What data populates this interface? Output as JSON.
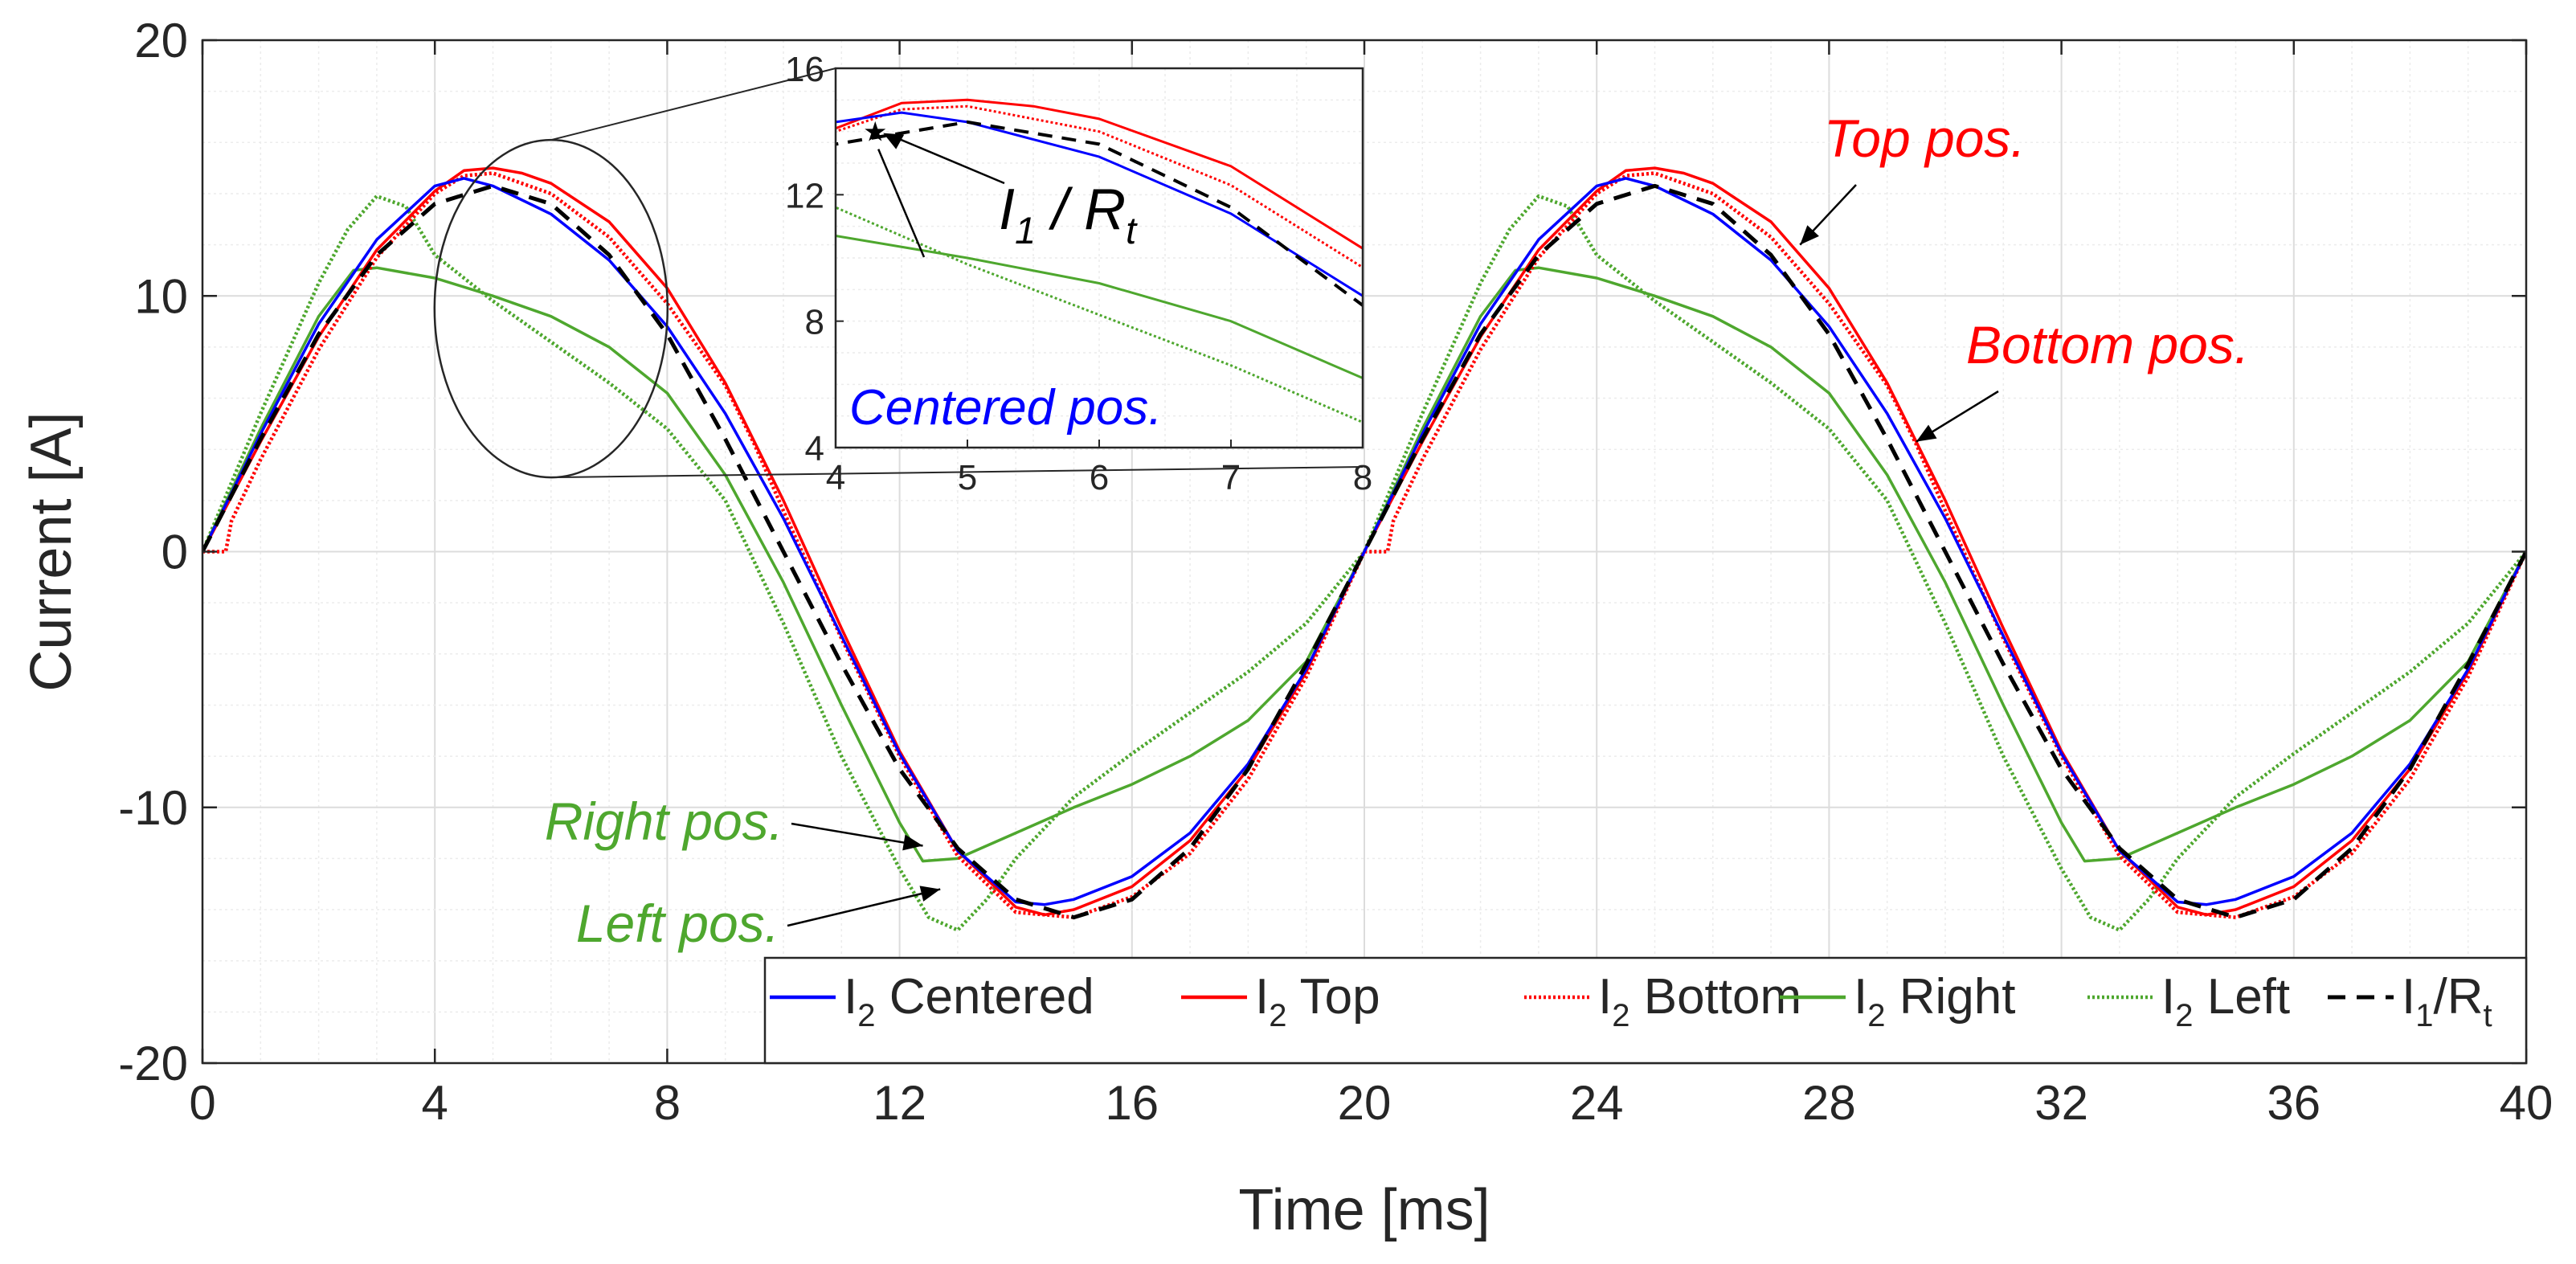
{
  "chart_data": {
    "type": "line",
    "xlabel": "Time [ms]",
    "ylabel": "Current [A]",
    "xlim": [
      0,
      40
    ],
    "ylim": [
      -20,
      20
    ],
    "xticks": [
      0,
      4,
      8,
      12,
      16,
      20,
      24,
      28,
      32,
      36,
      40
    ],
    "yticks": [
      -20,
      -10,
      0,
      10,
      20
    ],
    "grid": true,
    "legend_position": "bottom-right",
    "series": [
      {
        "key": "centered",
        "name": "I2 Centered",
        "sub": "2",
        "legend": [
          "I",
          "2",
          " Centered"
        ],
        "color": "#0000ff",
        "style": "solid",
        "x": [
          0,
          1,
          2,
          3,
          4,
          4.5,
          5,
          6,
          7,
          8,
          9,
          10,
          11,
          12,
          13,
          14,
          14.5,
          15,
          16,
          17,
          18,
          19,
          20,
          21,
          22,
          23,
          24,
          24.5,
          25,
          26,
          27,
          28,
          29,
          30,
          31,
          32,
          33,
          34,
          34.5,
          35,
          36,
          37,
          38,
          39,
          40
        ],
        "y": [
          0,
          4.6,
          8.9,
          12.2,
          14.3,
          14.6,
          14.3,
          13.2,
          11.4,
          8.8,
          5.4,
          1.3,
          -3.3,
          -7.9,
          -11.7,
          -13.7,
          -13.8,
          -13.6,
          -12.7,
          -11.0,
          -8.3,
          -4.6,
          0,
          4.6,
          8.9,
          12.2,
          14.3,
          14.6,
          14.3,
          13.2,
          11.4,
          8.8,
          5.4,
          1.3,
          -3.3,
          -7.9,
          -11.7,
          -13.7,
          -13.8,
          -13.6,
          -12.7,
          -11.0,
          -8.3,
          -4.6,
          0
        ]
      },
      {
        "key": "top",
        "name": "I2 Top",
        "sub": "2",
        "legend": [
          "I",
          "2",
          " Top"
        ],
        "color": "#ff0000",
        "style": "solid",
        "x": [
          0,
          1,
          2,
          3,
          4,
          4.5,
          5,
          5.5,
          6,
          7,
          8,
          9,
          10,
          11,
          12,
          13,
          14,
          14.5,
          15,
          16,
          17,
          18,
          19,
          20,
          21,
          22,
          23,
          24,
          24.5,
          25,
          25.5,
          26,
          27,
          28,
          29,
          30,
          31,
          32,
          33,
          34,
          34.5,
          35,
          36,
          37,
          38,
          39,
          40
        ],
        "y": [
          0,
          4.3,
          8.4,
          11.8,
          14.1,
          14.9,
          15.0,
          14.8,
          14.4,
          12.9,
          10.3,
          6.6,
          2.0,
          -3.0,
          -7.8,
          -11.7,
          -13.9,
          -14.2,
          -14.0,
          -13.1,
          -11.3,
          -8.5,
          -4.7,
          0,
          4.3,
          8.4,
          11.8,
          14.1,
          14.9,
          15.0,
          14.8,
          14.4,
          12.9,
          10.3,
          6.6,
          2.0,
          -3.0,
          -7.8,
          -11.7,
          -13.9,
          -14.2,
          -14.0,
          -13.1,
          -11.3,
          -8.5,
          -4.7,
          0
        ]
      },
      {
        "key": "bottom",
        "name": "I2 Bottom",
        "sub": "2",
        "legend": [
          "I",
          "2",
          " Bottom"
        ],
        "color": "#ff0000",
        "style": "dotted",
        "x": [
          0,
          0.4,
          0.5,
          1,
          2,
          3,
          4,
          4.5,
          5,
          6,
          7,
          8,
          9,
          9.5,
          10,
          11,
          12,
          13,
          14,
          15,
          16,
          17,
          18,
          19,
          20,
          20.4,
          20.5,
          21,
          22,
          23,
          24,
          24.5,
          25,
          26,
          27,
          28,
          29,
          29.5,
          30,
          31,
          32,
          33,
          34,
          35,
          36,
          37,
          38,
          39,
          40
        ],
        "y": [
          0,
          0,
          1.2,
          3.6,
          7.9,
          11.5,
          14.0,
          14.7,
          14.8,
          14.0,
          12.3,
          9.7,
          6.5,
          4.2,
          1.6,
          -3.4,
          -8.0,
          -11.9,
          -14.1,
          -14.3,
          -13.5,
          -11.8,
          -8.9,
          -4.9,
          0,
          0,
          1.2,
          3.6,
          7.9,
          11.5,
          14.0,
          14.7,
          14.8,
          14.0,
          12.3,
          9.7,
          6.5,
          4.2,
          1.6,
          -3.4,
          -8.0,
          -11.9,
          -14.1,
          -14.3,
          -13.5,
          -11.8,
          -8.9,
          -4.9,
          0
        ]
      },
      {
        "key": "right",
        "name": "I2 Right",
        "sub": "2",
        "legend": [
          "I",
          "2",
          " Right"
        ],
        "color": "#4ea72e",
        "style": "solid",
        "x": [
          0,
          1,
          2,
          2.6,
          3,
          4,
          5,
          6,
          7,
          8,
          9,
          10,
          11,
          12,
          12.4,
          13,
          14,
          15,
          16,
          17,
          18,
          19,
          20,
          21,
          22,
          22.6,
          23,
          24,
          25,
          26,
          27,
          28,
          29,
          30,
          31,
          32,
          32.4,
          33,
          34,
          35,
          36,
          37,
          38,
          39,
          40
        ],
        "y": [
          0,
          4.8,
          9.2,
          11.0,
          11.1,
          10.7,
          10.0,
          9.2,
          8.0,
          6.2,
          3.0,
          -1.2,
          -6.0,
          -10.6,
          -12.1,
          -12.0,
          -11.0,
          -10.0,
          -9.1,
          -8.0,
          -6.6,
          -4.3,
          0,
          4.8,
          9.2,
          11.0,
          11.1,
          10.7,
          10.0,
          9.2,
          8.0,
          6.2,
          3.0,
          -1.2,
          -6.0,
          -10.6,
          -12.1,
          -12.0,
          -11.0,
          -10.0,
          -9.1,
          -8.0,
          -6.6,
          -4.3,
          0
        ]
      },
      {
        "key": "left",
        "name": "I2 Left",
        "sub": "2",
        "legend": [
          "I",
          "2",
          " Left"
        ],
        "color": "#4ea72e",
        "style": "dotted",
        "x": [
          0,
          1,
          2,
          2.5,
          3,
          3.5,
          4,
          5,
          6,
          7,
          8,
          9,
          10,
          11,
          12,
          12.5,
          13,
          13.5,
          14,
          15,
          16,
          17,
          18,
          19,
          20,
          21,
          22,
          22.5,
          23,
          23.5,
          24,
          25,
          26,
          27,
          28,
          29,
          30,
          31,
          32,
          32.5,
          33,
          33.5,
          34,
          35,
          36,
          37,
          38,
          39,
          40
        ],
        "y": [
          0,
          5.4,
          10.5,
          12.6,
          13.9,
          13.5,
          11.6,
          9.8,
          8.2,
          6.6,
          4.8,
          2.0,
          -2.8,
          -8.0,
          -12.4,
          -14.3,
          -14.8,
          -13.6,
          -12.0,
          -9.6,
          -7.9,
          -6.3,
          -4.7,
          -2.8,
          0,
          5.4,
          10.5,
          12.6,
          13.9,
          13.5,
          11.6,
          9.8,
          8.2,
          6.6,
          4.8,
          2.0,
          -2.8,
          -8.0,
          -12.4,
          -14.3,
          -14.8,
          -13.6,
          -12.0,
          -9.6,
          -7.9,
          -6.3,
          -4.7,
          -2.8,
          0
        ]
      },
      {
        "key": "ref",
        "name": "I1/Rt",
        "sub": "",
        "legend": [
          "I",
          "1",
          "/R",
          "t"
        ],
        "color": "#000000",
        "style": "dashed",
        "x": [
          0,
          1,
          2,
          3,
          4,
          5,
          6,
          7,
          8,
          9,
          10,
          11,
          12,
          13,
          14,
          15,
          16,
          17,
          18,
          19,
          20,
          21,
          22,
          23,
          24,
          25,
          26,
          27,
          28,
          29,
          30,
          31,
          32,
          33,
          34,
          35,
          36,
          37,
          38,
          39,
          40
        ],
        "y": [
          0,
          4.4,
          8.5,
          11.6,
          13.6,
          14.3,
          13.6,
          11.6,
          8.5,
          4.4,
          0,
          -4.4,
          -8.5,
          -11.6,
          -13.6,
          -14.3,
          -13.6,
          -11.6,
          -8.5,
          -4.4,
          0,
          4.4,
          8.5,
          11.6,
          13.6,
          14.3,
          13.6,
          11.6,
          8.5,
          4.4,
          0,
          -4.4,
          -8.5,
          -11.6,
          -13.6,
          -14.3,
          -13.6,
          -11.6,
          -8.5,
          -4.4,
          0
        ]
      }
    ],
    "inset": {
      "xlim": [
        4,
        8
      ],
      "ylim": [
        4,
        16
      ],
      "xticks": [
        4,
        5,
        6,
        7,
        8
      ],
      "yticks": [
        4,
        8,
        12,
        16
      ],
      "zoom_center": [
        6,
        9.5
      ],
      "annotation_label": [
        "I",
        "1",
        " / R",
        "t"
      ],
      "annotation_point": [
        4.3,
        14.0
      ],
      "label": "Centered pos.",
      "label_color": "#0000ff"
    },
    "annotations": [
      {
        "text": "Top pos.",
        "color": "#ff0000",
        "point": [
          27.5,
          12.0
        ]
      },
      {
        "text": "Bottom pos.",
        "color": "#ff0000",
        "point": [
          29.5,
          4.3
        ]
      },
      {
        "text": "Right pos.",
        "color": "#4ea72e",
        "point": [
          12.4,
          -11.5
        ]
      },
      {
        "text": "Left pos.",
        "color": "#4ea72e",
        "point": [
          12.7,
          -13.2
        ]
      }
    ]
  }
}
